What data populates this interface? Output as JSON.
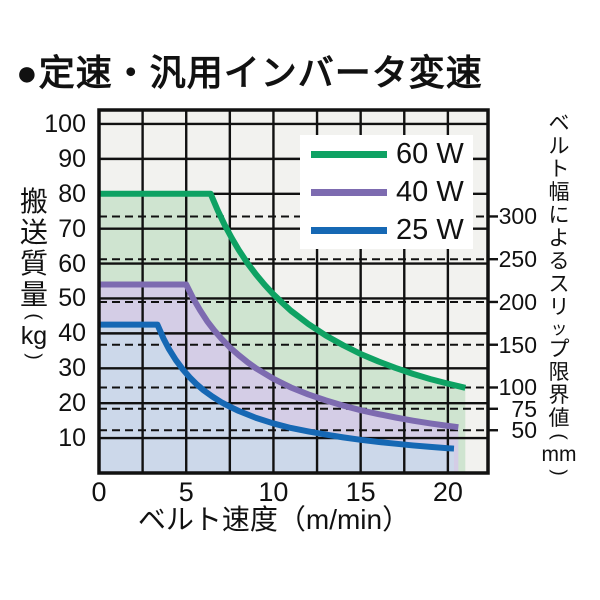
{
  "page_title": "●定速・汎用インバータ変速",
  "chart_data": {
    "type": "area",
    "title": "定速・汎用インバータ変速",
    "grid": "on",
    "legend_position": "top-right",
    "x_axis": {
      "label": "ベルト速度（m/min）",
      "range": [
        0,
        22.3
      ],
      "ticks": [
        0,
        5,
        10,
        15,
        20
      ],
      "grid_step": 2.5
    },
    "y_axis": {
      "label": "搬送質量",
      "unit": "kg",
      "range": [
        0,
        104
      ],
      "ticks": [
        100,
        90,
        80,
        70,
        60,
        50,
        40,
        30,
        20,
        10
      ],
      "grid_step": 10
    },
    "y2_axis": {
      "label": "ベルト幅によるスリップ限界値",
      "unit": "mm",
      "style": "dashed-gridlines",
      "ticks": [
        {
          "mm": "300",
          "kg": 73.5
        },
        {
          "mm": "250",
          "kg": 61.25
        },
        {
          "mm": "200",
          "kg": 49
        },
        {
          "mm": "150",
          "kg": 36.75
        },
        {
          "mm": "100",
          "kg": 24.5
        },
        {
          "mm": "75",
          "kg": 18.4
        },
        {
          "mm": "50",
          "kg": 12.25
        }
      ]
    },
    "series": [
      {
        "name": "60 W",
        "color": "#0ea263",
        "fill": "#cfe4d0",
        "points": [
          [
            0,
            80
          ],
          [
            6.4,
            80
          ],
          [
            6.8,
            75.3
          ],
          [
            7.2,
            71.1
          ],
          [
            7.6,
            67.4
          ],
          [
            8,
            64
          ],
          [
            8.5,
            60.2
          ],
          [
            9,
            56.9
          ],
          [
            9.5,
            53.9
          ],
          [
            10,
            51.2
          ],
          [
            10.5,
            48.8
          ],
          [
            11,
            46.5
          ],
          [
            12,
            42.7
          ],
          [
            13,
            39.4
          ],
          [
            14,
            36.6
          ],
          [
            15,
            34.1
          ],
          [
            16,
            32
          ],
          [
            17,
            30.1
          ],
          [
            18,
            28.4
          ],
          [
            19,
            26.9
          ],
          [
            20,
            25.6
          ],
          [
            21,
            24.4
          ]
        ]
      },
      {
        "name": "40 W",
        "color": "#7d6bb0",
        "fill": "#d4cde6",
        "points": [
          [
            0,
            54
          ],
          [
            5,
            54
          ],
          [
            5.4,
            50
          ],
          [
            5.8,
            46.6
          ],
          [
            6.2,
            43.5
          ],
          [
            6.6,
            40.9
          ],
          [
            7,
            38.6
          ],
          [
            7.5,
            36
          ],
          [
            8,
            33.8
          ],
          [
            8.5,
            31.8
          ],
          [
            9,
            30
          ],
          [
            10,
            27
          ],
          [
            11,
            24.5
          ],
          [
            12,
            22.5
          ],
          [
            13,
            20.8
          ],
          [
            14,
            19.3
          ],
          [
            15,
            18
          ],
          [
            16,
            16.9
          ],
          [
            17,
            15.9
          ],
          [
            18,
            15
          ],
          [
            19,
            14.2
          ],
          [
            20,
            13.5
          ],
          [
            20.6,
            13.1
          ]
        ]
      },
      {
        "name": "25 W",
        "color": "#1668b4",
        "fill": "#ccd8ea",
        "points": [
          [
            0,
            42.5
          ],
          [
            3.35,
            42.5
          ],
          [
            3.7,
            38.5
          ],
          [
            4,
            35.6
          ],
          [
            4.4,
            32.4
          ],
          [
            4.8,
            29.7
          ],
          [
            5.2,
            27.4
          ],
          [
            5.6,
            25.4
          ],
          [
            6,
            23.7
          ],
          [
            6.5,
            21.9
          ],
          [
            7,
            20.3
          ],
          [
            7.5,
            19
          ],
          [
            8,
            17.8
          ],
          [
            9,
            15.8
          ],
          [
            10,
            14.2
          ],
          [
            11,
            12.9
          ],
          [
            12,
            11.9
          ],
          [
            13,
            11
          ],
          [
            14,
            10.2
          ],
          [
            15,
            9.5
          ],
          [
            16,
            8.9
          ],
          [
            17,
            8.4
          ],
          [
            18,
            7.9
          ],
          [
            19,
            7.5
          ],
          [
            20,
            7.1
          ],
          [
            20.35,
            7
          ]
        ]
      }
    ]
  },
  "colors": {
    "plot_background": "#f2f2ef",
    "grid": "#111111",
    "text": "#111111",
    "page_background": "#ffffff"
  }
}
